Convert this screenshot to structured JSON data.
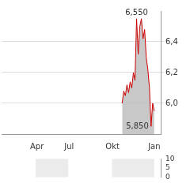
{
  "chart_data": [
    {
      "type": "line",
      "color": "#cc0000",
      "grid": true,
      "stacked": false,
      "categories": [
        null,
        null,
        null,
        null,
        null,
        null,
        null,
        null,
        null,
        null,
        null,
        null,
        null,
        null,
        null,
        null,
        null,
        null,
        null,
        null,
        null,
        null,
        "Apr",
        null,
        null,
        null,
        null,
        null,
        null,
        null,
        null,
        null,
        null,
        null,
        null,
        null,
        null,
        null,
        null,
        null,
        null,
        null,
        "Jul",
        null,
        null,
        null,
        null,
        null,
        null,
        null,
        null,
        null,
        null,
        null,
        null,
        null,
        null,
        null,
        null,
        null,
        null,
        null,
        null,
        null,
        null,
        null,
        null,
        null,
        null,
        "Okt",
        null,
        null,
        null,
        null,
        null,
        null,
        null,
        null,
        null,
        null,
        null,
        null,
        null,
        null,
        null,
        null,
        null,
        null,
        null,
        null,
        null,
        null,
        null,
        null,
        null,
        "Jan",
        null,
        null,
        null,
        null
      ],
      "values": [
        null,
        null,
        null,
        null,
        null,
        null,
        null,
        null,
        null,
        null,
        null,
        null,
        null,
        null,
        null,
        null,
        null,
        null,
        null,
        null,
        null,
        null,
        null,
        null,
        null,
        null,
        null,
        null,
        null,
        null,
        null,
        null,
        null,
        null,
        null,
        null,
        null,
        null,
        null,
        null,
        null,
        null,
        null,
        null,
        null,
        null,
        null,
        null,
        null,
        null,
        null,
        null,
        null,
        null,
        null,
        null,
        null,
        null,
        null,
        null,
        null,
        null,
        null,
        null,
        null,
        null,
        null,
        null,
        null,
        null,
        null,
        null,
        null,
        null,
        null,
        6.0,
        6.08,
        6.05,
        6.12,
        6.07,
        6.14,
        6.1,
        6.2,
        6.15,
        6.55,
        6.32,
        6.5,
        6.55,
        6.42,
        6.48,
        6.3,
        6.22,
        6.1,
        5.85,
        6.0,
        5.95,
        null,
        null,
        null,
        null
      ],
      "ylim": [
        5.8,
        6.6
      ],
      "yticks": [
        {
          "value": 6.0,
          "label": "6,0"
        },
        {
          "value": 6.2,
          "label": "6,2"
        },
        {
          "value": 6.4,
          "label": "6,4"
        }
      ],
      "annotations": [
        {
          "value": 6.55,
          "label": "6,550"
        },
        {
          "value": 5.85,
          "label": "5,850"
        }
      ]
    },
    {
      "type": "bar",
      "color": "#9a9a9a",
      "grid": false,
      "tick_labels": "y",
      "categories": [
        null,
        null,
        null,
        null,
        null,
        null,
        null,
        null,
        null,
        null,
        null,
        null,
        null,
        null,
        null,
        null,
        null,
        null,
        null,
        null,
        null,
        null,
        "Apr",
        null,
        null,
        null,
        null,
        null,
        null,
        null,
        null,
        null,
        null,
        null,
        null,
        null,
        null,
        null,
        null,
        null,
        null,
        null,
        "Jul",
        null,
        null,
        null,
        null,
        null,
        null,
        null,
        null,
        null,
        null,
        null,
        null,
        null,
        null,
        null,
        null,
        null,
        null,
        null,
        null,
        null,
        null,
        null,
        null,
        null,
        null,
        "Okt",
        null,
        null,
        null,
        null,
        null,
        null,
        null,
        null,
        null,
        null,
        null,
        null,
        null,
        null,
        null,
        null,
        null,
        null,
        null,
        null,
        null,
        null,
        null,
        null,
        null,
        "Jan",
        null,
        null,
        null,
        null
      ],
      "values": [
        null,
        null,
        null,
        null,
        null,
        null,
        null,
        null,
        null,
        null,
        null,
        null,
        null,
        null,
        null,
        null,
        null,
        null,
        null,
        null,
        null,
        null,
        null,
        null,
        null,
        null,
        null,
        null,
        null,
        null,
        null,
        null,
        null,
        null,
        null,
        null,
        null,
        null,
        null,
        null,
        null,
        null,
        null,
        null,
        null,
        null,
        null,
        null,
        null,
        null,
        null,
        null,
        null,
        null,
        null,
        null,
        null,
        null,
        null,
        null,
        null,
        null,
        null,
        null,
        null,
        null,
        null,
        null,
        null,
        null,
        null,
        null,
        null,
        null,
        null,
        null,
        null,
        null,
        null,
        null,
        null,
        null,
        null,
        null,
        null,
        null,
        null,
        null,
        null,
        null,
        null,
        null,
        null,
        null,
        null,
        null,
        null,
        null,
        null,
        null
      ],
      "ylim": [
        0,
        10
      ],
      "yticks": [
        0,
        5,
        10
      ]
    }
  ]
}
